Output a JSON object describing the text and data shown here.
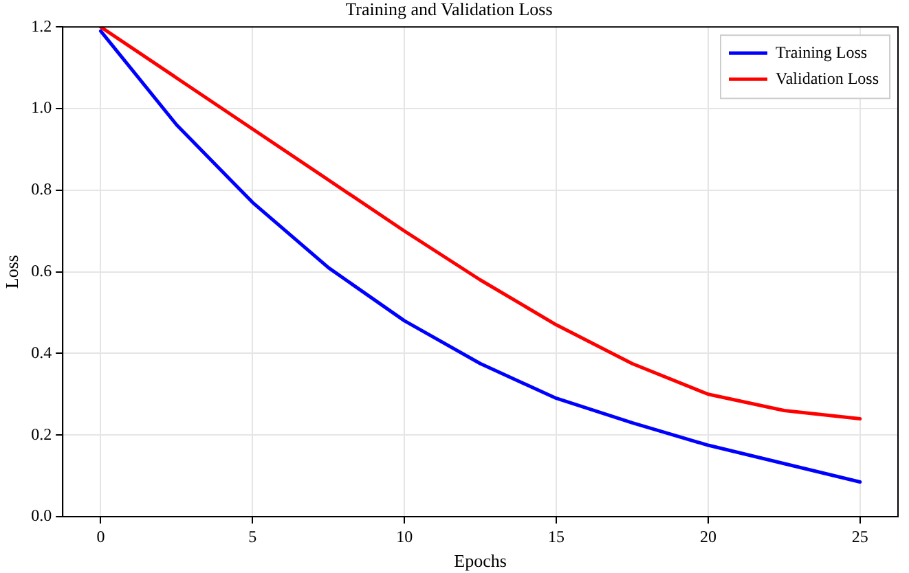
{
  "chart_data": {
    "type": "line",
    "title": "Training and Validation Loss",
    "xlabel": "Epochs",
    "ylabel": "Loss",
    "series": [
      {
        "name": "Training Loss",
        "color": "#0000ff",
        "x": [
          0,
          2.5,
          5,
          7.5,
          10,
          12.5,
          15,
          17.5,
          20,
          22.5,
          25
        ],
        "values": [
          1.19,
          0.96,
          0.77,
          0.61,
          0.48,
          0.375,
          0.29,
          0.23,
          0.175,
          0.13,
          0.085
        ]
      },
      {
        "name": "Validation Loss",
        "color": "#ff0000",
        "x": [
          0,
          2.5,
          5,
          7.5,
          10,
          12.5,
          15,
          17.5,
          20,
          22.5,
          25
        ],
        "values": [
          1.2,
          1.075,
          0.95,
          0.825,
          0.7,
          0.58,
          0.47,
          0.375,
          0.3,
          0.26,
          0.24
        ]
      }
    ],
    "xlim": [
      -1.25,
      26.25
    ],
    "xticks": [
      0,
      5,
      10,
      15,
      20,
      25
    ],
    "ylim": [
      0,
      1.2
    ],
    "yticks": [
      {
        "value": 0,
        "label": "0.0"
      },
      {
        "value": 0.2,
        "label": "0.2"
      },
      {
        "value": 0.4,
        "label": "0.4"
      },
      {
        "value": 0.6,
        "label": "0.6"
      },
      {
        "value": 0.8,
        "label": "0.8"
      },
      {
        "value": 1.0,
        "label": "1.0"
      },
      {
        "value": 1.2,
        "label": "1.2"
      }
    ],
    "grid": true,
    "legend": "top right",
    "marker": "none",
    "line_style": "solid"
  }
}
